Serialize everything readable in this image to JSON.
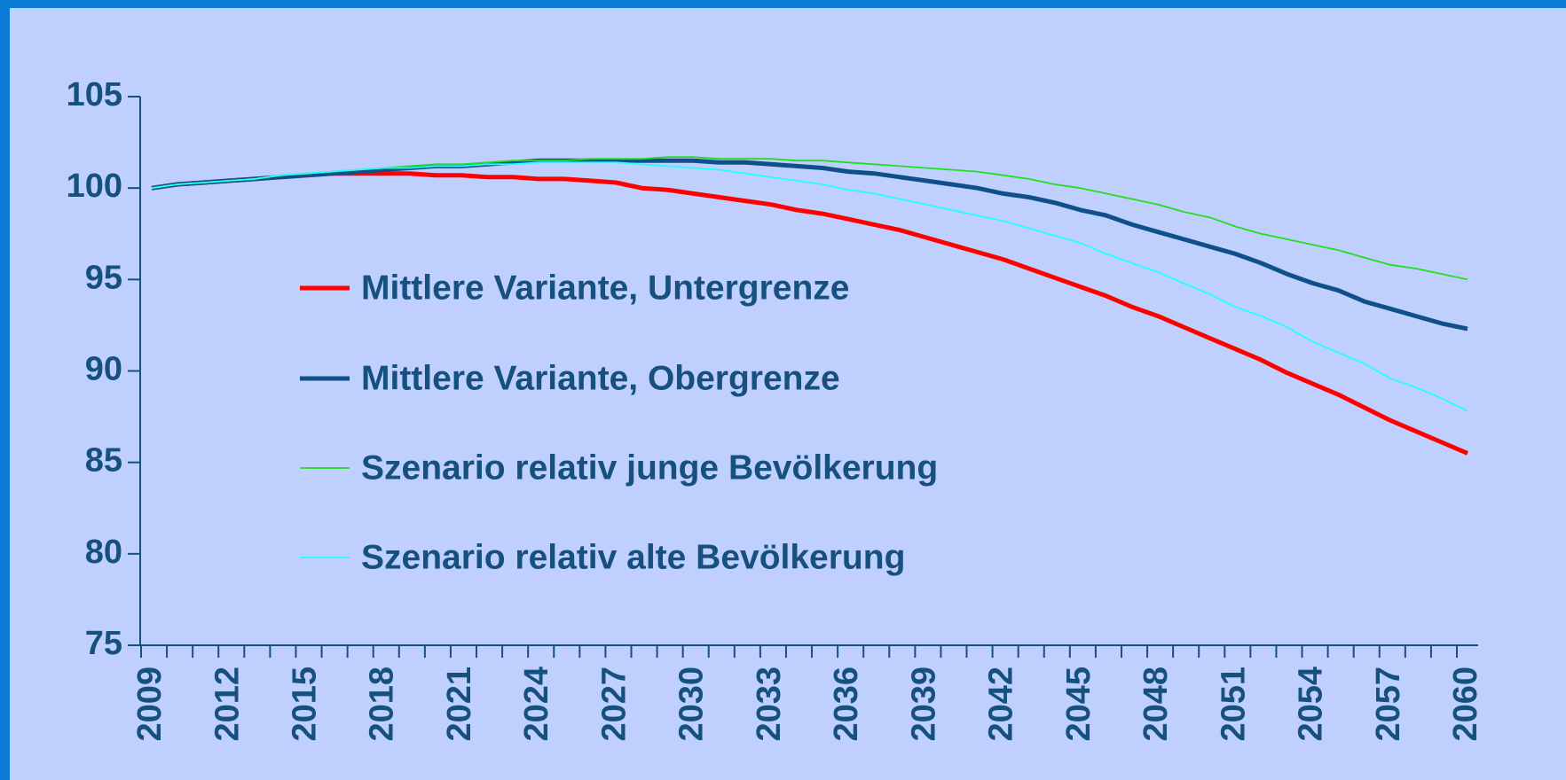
{
  "chart_data": {
    "type": "line",
    "x": [
      2009,
      2010,
      2011,
      2012,
      2013,
      2014,
      2015,
      2016,
      2017,
      2018,
      2019,
      2020,
      2021,
      2022,
      2023,
      2024,
      2025,
      2026,
      2027,
      2028,
      2029,
      2030,
      2031,
      2032,
      2033,
      2034,
      2035,
      2036,
      2037,
      2038,
      2039,
      2040,
      2041,
      2042,
      2043,
      2044,
      2045,
      2046,
      2047,
      2048,
      2049,
      2050,
      2051,
      2052,
      2053,
      2054,
      2055,
      2056,
      2057,
      2058,
      2059,
      2060
    ],
    "series": [
      {
        "name": "Mittlere Variante, Untergrenze",
        "color": "#ff0000",
        "values": [
          100,
          100.2,
          100.3,
          100.4,
          100.5,
          100.6,
          100.7,
          100.8,
          100.8,
          100.8,
          100.8,
          100.7,
          100.7,
          100.6,
          100.6,
          100.5,
          100.5,
          100.4,
          100.3,
          100.0,
          99.9,
          99.7,
          99.5,
          99.3,
          99.1,
          98.8,
          98.6,
          98.3,
          98.0,
          97.7,
          97.3,
          96.9,
          96.5,
          96.1,
          95.6,
          95.1,
          94.6,
          94.1,
          93.5,
          93.0,
          92.4,
          91.8,
          91.2,
          90.6,
          89.9,
          89.3,
          88.7,
          88.0,
          87.3,
          86.7,
          86.1,
          85.5
        ]
      },
      {
        "name": "Mittlere Variante, Obergrenze",
        "color": "#10508a",
        "values": [
          100,
          100.2,
          100.3,
          100.4,
          100.5,
          100.6,
          100.7,
          100.8,
          100.9,
          101.0,
          101.1,
          101.2,
          101.2,
          101.3,
          101.4,
          101.5,
          101.5,
          101.5,
          101.5,
          101.5,
          101.5,
          101.5,
          101.4,
          101.4,
          101.3,
          101.2,
          101.1,
          100.9,
          100.8,
          100.6,
          100.4,
          100.2,
          100.0,
          99.7,
          99.5,
          99.2,
          98.8,
          98.5,
          98.0,
          97.6,
          97.2,
          96.8,
          96.4,
          95.9,
          95.3,
          94.8,
          94.4,
          93.8,
          93.4,
          93.0,
          92.6,
          92.3
        ]
      },
      {
        "name": "Szenario relativ junge Bevölkerung",
        "color": "#22dd22",
        "values": [
          100,
          100.2,
          100.3,
          100.4,
          100.5,
          100.7,
          100.8,
          100.9,
          101.0,
          101.1,
          101.2,
          101.3,
          101.3,
          101.4,
          101.5,
          101.5,
          101.5,
          101.6,
          101.6,
          101.6,
          101.7,
          101.7,
          101.6,
          101.6,
          101.6,
          101.5,
          101.5,
          101.4,
          101.3,
          101.2,
          101.1,
          101.0,
          100.9,
          100.7,
          100.5,
          100.2,
          100.0,
          99.7,
          99.4,
          99.1,
          98.7,
          98.4,
          97.9,
          97.5,
          97.2,
          96.9,
          96.6,
          96.2,
          95.8,
          95.6,
          95.3,
          95.0
        ]
      },
      {
        "name": "Szenario relativ alte Bevölkerung",
        "color": "#22ffff",
        "values": [
          100,
          100.2,
          100.3,
          100.4,
          100.5,
          100.7,
          100.8,
          100.9,
          101.0,
          101.1,
          101.1,
          101.2,
          101.2,
          101.3,
          101.3,
          101.4,
          101.4,
          101.4,
          101.4,
          101.3,
          101.2,
          101.1,
          101.0,
          100.8,
          100.6,
          100.4,
          100.2,
          99.9,
          99.7,
          99.4,
          99.1,
          98.8,
          98.5,
          98.2,
          97.8,
          97.4,
          97.0,
          96.4,
          95.9,
          95.4,
          94.8,
          94.2,
          93.5,
          93.0,
          92.4,
          91.6,
          91.0,
          90.4,
          89.6,
          89.1,
          88.5,
          87.8
        ]
      }
    ],
    "xlim": [
      2009,
      2060
    ],
    "xticks": [
      2009,
      2012,
      2015,
      2018,
      2021,
      2024,
      2027,
      2030,
      2033,
      2036,
      2039,
      2042,
      2045,
      2048,
      2051,
      2054,
      2057,
      2060
    ],
    "ylim": [
      75,
      105
    ],
    "yticks": [
      75,
      80,
      85,
      90,
      95,
      100,
      105
    ],
    "grid": false
  }
}
